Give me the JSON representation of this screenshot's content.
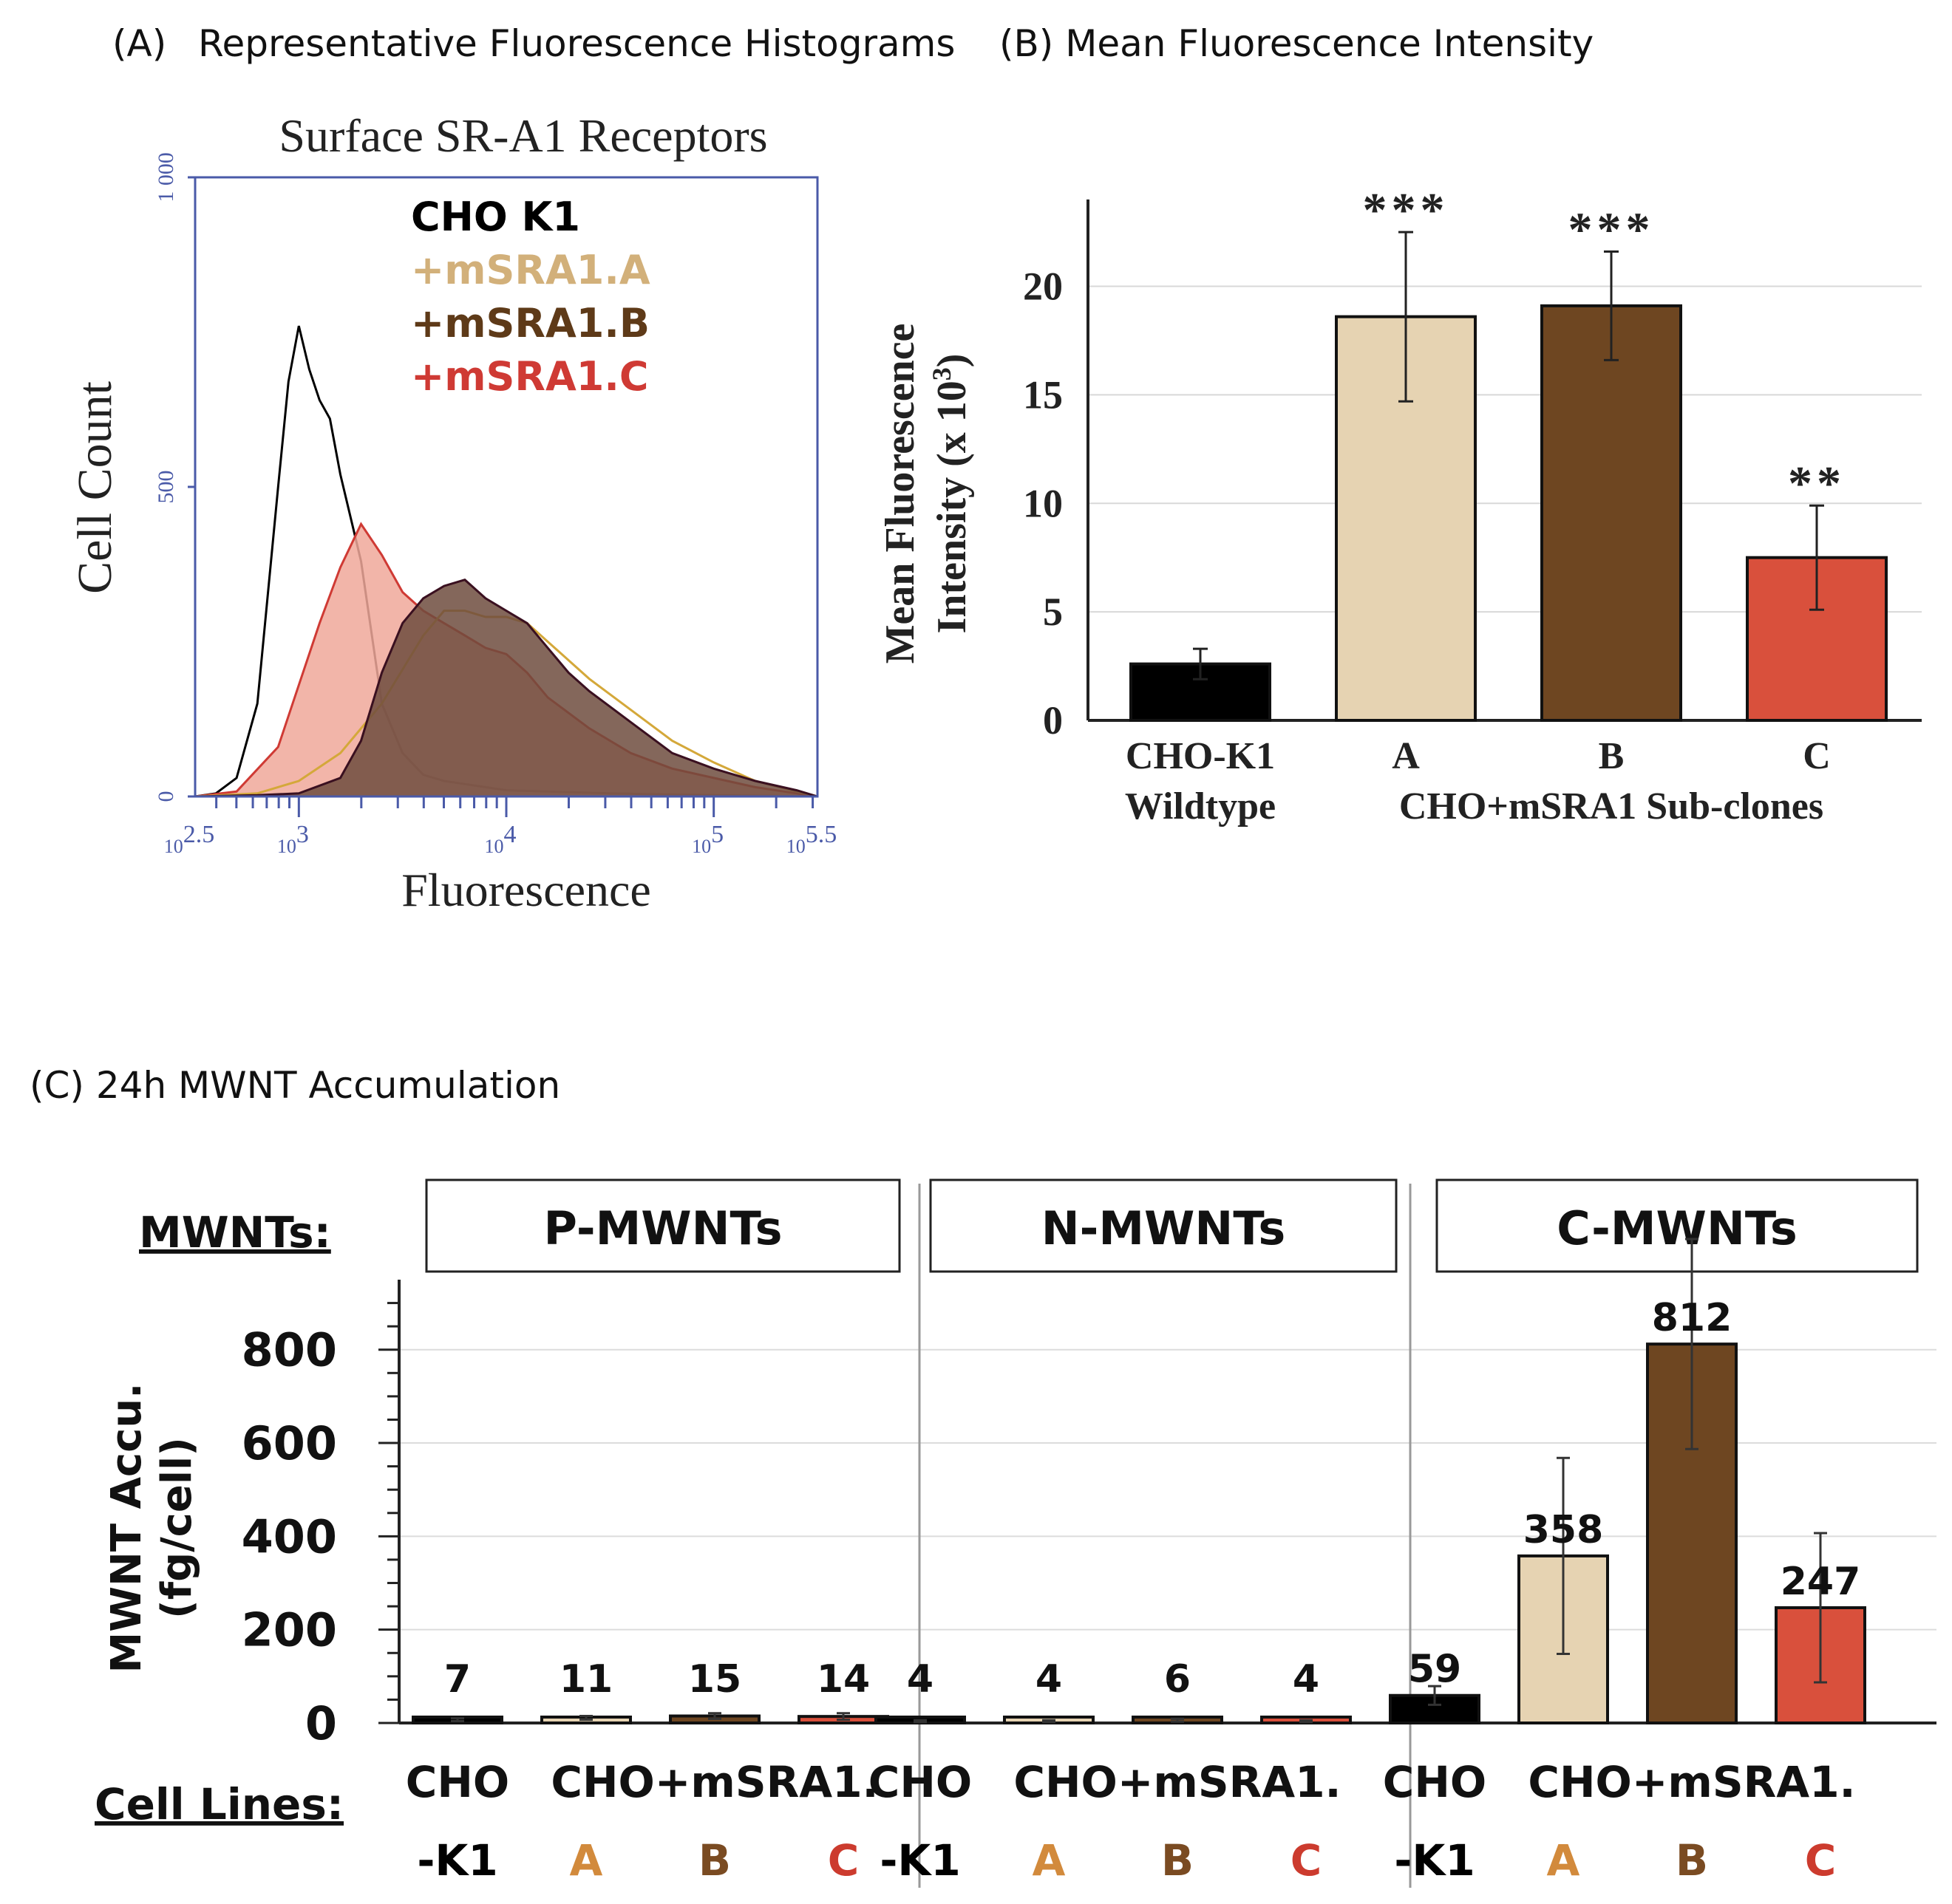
{
  "panels": {
    "a_label": "(A)",
    "a_title": "Representative Fluorescence Histograms",
    "b_title": "(B) Mean Fluorescence Intensity",
    "c_title": "(C) 24h MWNT Accumulation"
  },
  "chart_data": [
    {
      "type": "line",
      "panel": "A",
      "title": "Surface SR-A1 Receptors",
      "xlabel": "Fluorescence",
      "ylabel": "Cell Count",
      "x_scale": "log10",
      "xlim_log10": [
        2.5,
        5.5
      ],
      "ylim": [
        0,
        1000
      ],
      "x_tick_base": "10",
      "x_tick_exponents": [
        "2.5",
        "3",
        "4",
        "5",
        "5.5"
      ],
      "x_tick_values_log10": [
        2.5,
        3,
        4,
        5,
        5.5
      ],
      "y_ticks": [
        "0",
        "500",
        "1 000"
      ],
      "y_tick_values": [
        0,
        500,
        1000
      ],
      "legend": [
        {
          "label": "CHO K1",
          "color": "#000000"
        },
        {
          "label": "+mSRA1.A",
          "color": "#d2b07a"
        },
        {
          "label": "+mSRA1.B",
          "color": "#5e3a18"
        },
        {
          "label": "+mSRA1.C",
          "color": "#cf3a34"
        }
      ],
      "series": [
        {
          "name": "CHO K1",
          "color": "#000000",
          "fill": "none",
          "x_log10": [
            2.5,
            2.6,
            2.7,
            2.8,
            2.9,
            2.95,
            3.0,
            3.05,
            3.1,
            3.15,
            3.2,
            3.3,
            3.4,
            3.5,
            3.6,
            3.7,
            3.8,
            3.9,
            4.0,
            4.2,
            4.5,
            5.0,
            5.5
          ],
          "y": [
            0,
            5,
            30,
            150,
            500,
            670,
            760,
            690,
            640,
            610,
            520,
            380,
            150,
            70,
            35,
            25,
            20,
            15,
            10,
            8,
            5,
            2,
            0
          ]
        },
        {
          "name": "+mSRA1.C",
          "color": "#cf3a34",
          "fill": "#f0a89a",
          "x_log10": [
            2.5,
            2.7,
            2.9,
            3.0,
            3.1,
            3.2,
            3.3,
            3.4,
            3.5,
            3.6,
            3.7,
            3.8,
            3.9,
            4.0,
            4.1,
            4.2,
            4.4,
            4.6,
            4.8,
            5.0,
            5.2,
            5.4,
            5.5
          ],
          "y": [
            0,
            8,
            80,
            180,
            280,
            370,
            440,
            390,
            330,
            300,
            280,
            260,
            240,
            230,
            200,
            160,
            110,
            70,
            45,
            30,
            15,
            5,
            0
          ]
        },
        {
          "name": "+mSRA1.A",
          "color": "#d4a83a",
          "fill": "none",
          "x_log10": [
            2.5,
            2.8,
            3.0,
            3.2,
            3.4,
            3.6,
            3.7,
            3.8,
            3.9,
            4.0,
            4.1,
            4.2,
            4.3,
            4.4,
            4.6,
            4.8,
            5.0,
            5.2,
            5.4,
            5.5
          ],
          "y": [
            0,
            5,
            25,
            70,
            150,
            260,
            300,
            300,
            290,
            290,
            280,
            250,
            220,
            190,
            140,
            90,
            55,
            25,
            8,
            0
          ]
        },
        {
          "name": "+mSRA1.B",
          "color": "#3a1020",
          "fill": "#6e4c3e",
          "x_log10": [
            2.5,
            2.8,
            3.0,
            3.2,
            3.3,
            3.4,
            3.5,
            3.6,
            3.7,
            3.8,
            3.9,
            4.0,
            4.1,
            4.2,
            4.3,
            4.4,
            4.6,
            4.8,
            5.0,
            5.2,
            5.4,
            5.5
          ],
          "y": [
            0,
            2,
            5,
            30,
            90,
            200,
            280,
            320,
            340,
            350,
            320,
            300,
            280,
            240,
            200,
            170,
            120,
            70,
            45,
            25,
            10,
            0
          ]
        }
      ]
    },
    {
      "type": "bar",
      "panel": "B",
      "categories": [
        "CHO-K1",
        "A",
        "B",
        "C"
      ],
      "values": [
        2.6,
        18.6,
        19.1,
        7.5
      ],
      "errors": [
        0.7,
        3.9,
        2.5,
        2.4
      ],
      "significance": [
        "",
        "***",
        "***",
        "**"
      ],
      "colors": [
        "#000000",
        "#e6d3b2",
        "#6e4621",
        "#d9503c"
      ],
      "ylabel_line1": "Mean Fluorescence",
      "ylabel_line2": "Intensity (x 10",
      "ylabel_sup": "3",
      "ylabel_end": ")",
      "ylim": [
        0,
        24
      ],
      "y_ticks": [
        "0",
        "5",
        "10",
        "15",
        "20"
      ],
      "y_tick_values": [
        0,
        5,
        10,
        15,
        20
      ],
      "group_labels": [
        "Wildtype",
        "CHO+mSRA1 Sub-clones"
      ]
    },
    {
      "type": "bar",
      "panel": "C",
      "ylabel_line1": "MWNT Accu.",
      "ylabel_line2": "(fg/cell)",
      "ylim": [
        0,
        950
      ],
      "y_ticks": [
        "0",
        "200",
        "400",
        "600",
        "800"
      ],
      "y_tick_values": [
        0,
        200,
        400,
        600,
        800
      ],
      "row_label_top": "MWNTs:",
      "row_label_bottom": "Cell Lines:",
      "colors": [
        "#000000",
        "#e6d3b2",
        "#6e4621",
        "#d9503c"
      ],
      "category_line1": [
        "CHO",
        "CHO+mSRA1."
      ],
      "category_line2": [
        "-K1",
        "A",
        "B",
        "C"
      ],
      "category_colors": [
        "#000000",
        "#d28a3c",
        "#7a4b22",
        "#cc3b2e"
      ],
      "groups": [
        {
          "name": "P-MWNTs",
          "values": [
            7,
            11,
            15,
            14
          ],
          "labels": [
            "7",
            "11",
            "15",
            "14"
          ],
          "errors": [
            3,
            4,
            6,
            7
          ]
        },
        {
          "name": "N-MWNTs",
          "values": [
            4,
            4,
            6,
            4
          ],
          "labels": [
            "4",
            "4",
            "6",
            "4"
          ],
          "errors": [
            2,
            2,
            3,
            2
          ]
        },
        {
          "name": "C-MWNTs",
          "values": [
            59,
            358,
            812,
            247
          ],
          "labels": [
            "59",
            "358",
            "812",
            "247"
          ],
          "errors": [
            20,
            210,
            225,
            160
          ]
        }
      ]
    }
  ]
}
